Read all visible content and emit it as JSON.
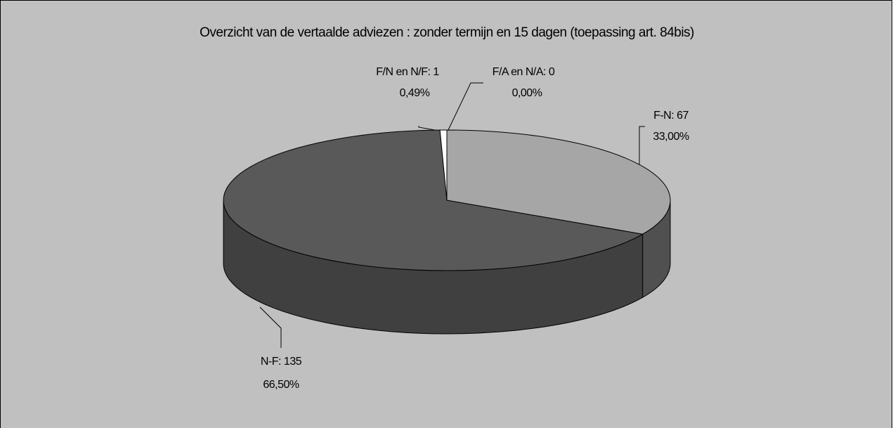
{
  "chart_data": {
    "type": "pie",
    "title": "Overzicht van de vertaalde adviezen : zonder termijn en 15 dagen (toepassing art. 84bis)",
    "values": [
      67,
      135,
      1,
      0
    ],
    "value_labels": [
      "F-N: 67",
      "N-F: 135",
      "F/N en N/F: 1",
      "F/A en N/A: 0"
    ],
    "percents": [
      33.0,
      66.5,
      0.49,
      0.0
    ],
    "percent_labels": [
      "33,00%",
      "66,50%",
      "0,49%",
      "0,00%"
    ],
    "colors": [
      "#a6a6a6",
      "#595959",
      "#ffffff",
      "#d9d9d9"
    ],
    "side_colors": [
      "#505050",
      "#404040",
      "#9a9a9a",
      "#8a8a8a"
    ]
  }
}
